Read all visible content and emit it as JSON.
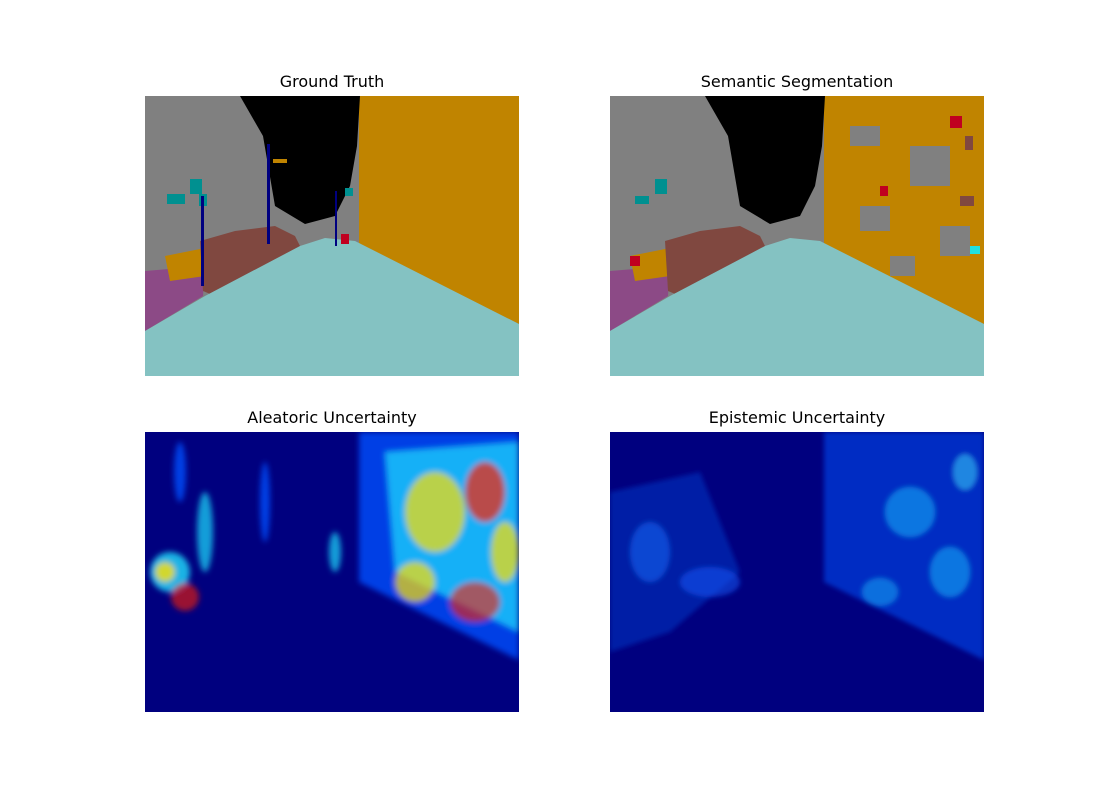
{
  "figure": {
    "panels": [
      {
        "title": "Ground Truth"
      },
      {
        "title": "Semantic Segmentation"
      },
      {
        "title": "Aleatoric Uncertainty"
      },
      {
        "title": "Epistemic Uncertainty"
      }
    ]
  },
  "colors": {
    "building": "#808080",
    "wall": "#c08400",
    "road": "#84c2c2",
    "sidewalk": "#8c4a86",
    "vegetation": "#804840",
    "sky": "#000000",
    "pole": "#000080",
    "sign": "#009090",
    "fence": "#c07c00",
    "person": "#c00020",
    "jet_low": "#00007f",
    "jet_mid": "#0050ff",
    "jet_cyan": "#20e0ff",
    "jet_yellow": "#ffe000",
    "jet_red": "#ff2000"
  }
}
